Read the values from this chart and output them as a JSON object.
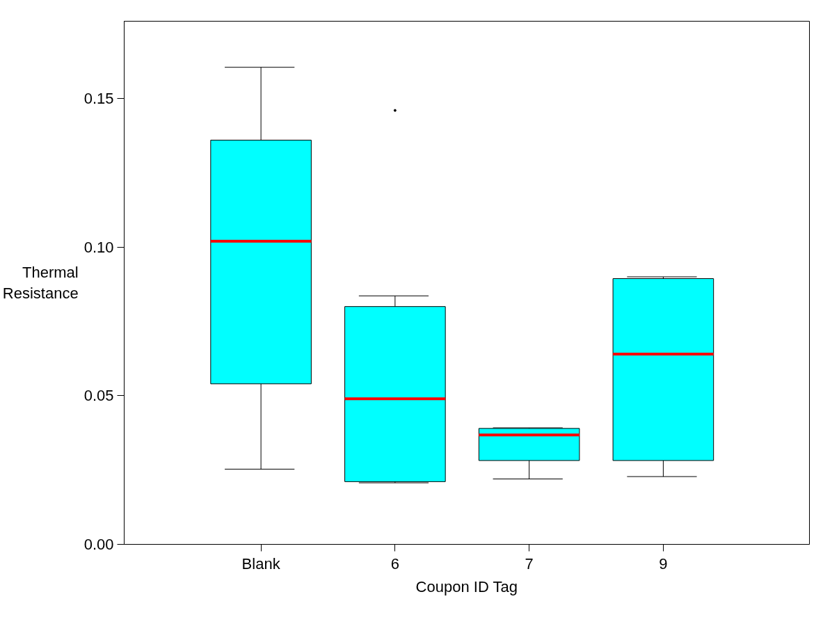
{
  "chart_data": {
    "type": "box",
    "xlabel": "Coupon ID Tag",
    "ylabel": "Thermal\nResistance",
    "categories": [
      "Blank",
      "6",
      "7",
      "9"
    ],
    "boxes": [
      {
        "low": 0.0253,
        "q1": 0.054,
        "median": 0.102,
        "q3": 0.136,
        "high": 0.1605
      },
      {
        "low": 0.0207,
        "q1": 0.0211,
        "median": 0.049,
        "q3": 0.08,
        "high": 0.0836,
        "outliers": [
          0.146
        ]
      },
      {
        "low": 0.022,
        "q1": 0.0282,
        "median": 0.0368,
        "q3": 0.039,
        "high": 0.0392
      },
      {
        "low": 0.0228,
        "q1": 0.0282,
        "median": 0.064,
        "q3": 0.0894,
        "high": 0.09
      }
    ],
    "color": "#00ffff",
    "ylim": [
      0,
      0.176
    ],
    "yticks": [
      {
        "value": 0,
        "label": "0.00"
      },
      {
        "value": 0.05,
        "label": "0.05"
      },
      {
        "value": 0.1,
        "label": "0.10"
      },
      {
        "value": 0.15,
        "label": "0.15"
      }
    ],
    "grid": false
  }
}
